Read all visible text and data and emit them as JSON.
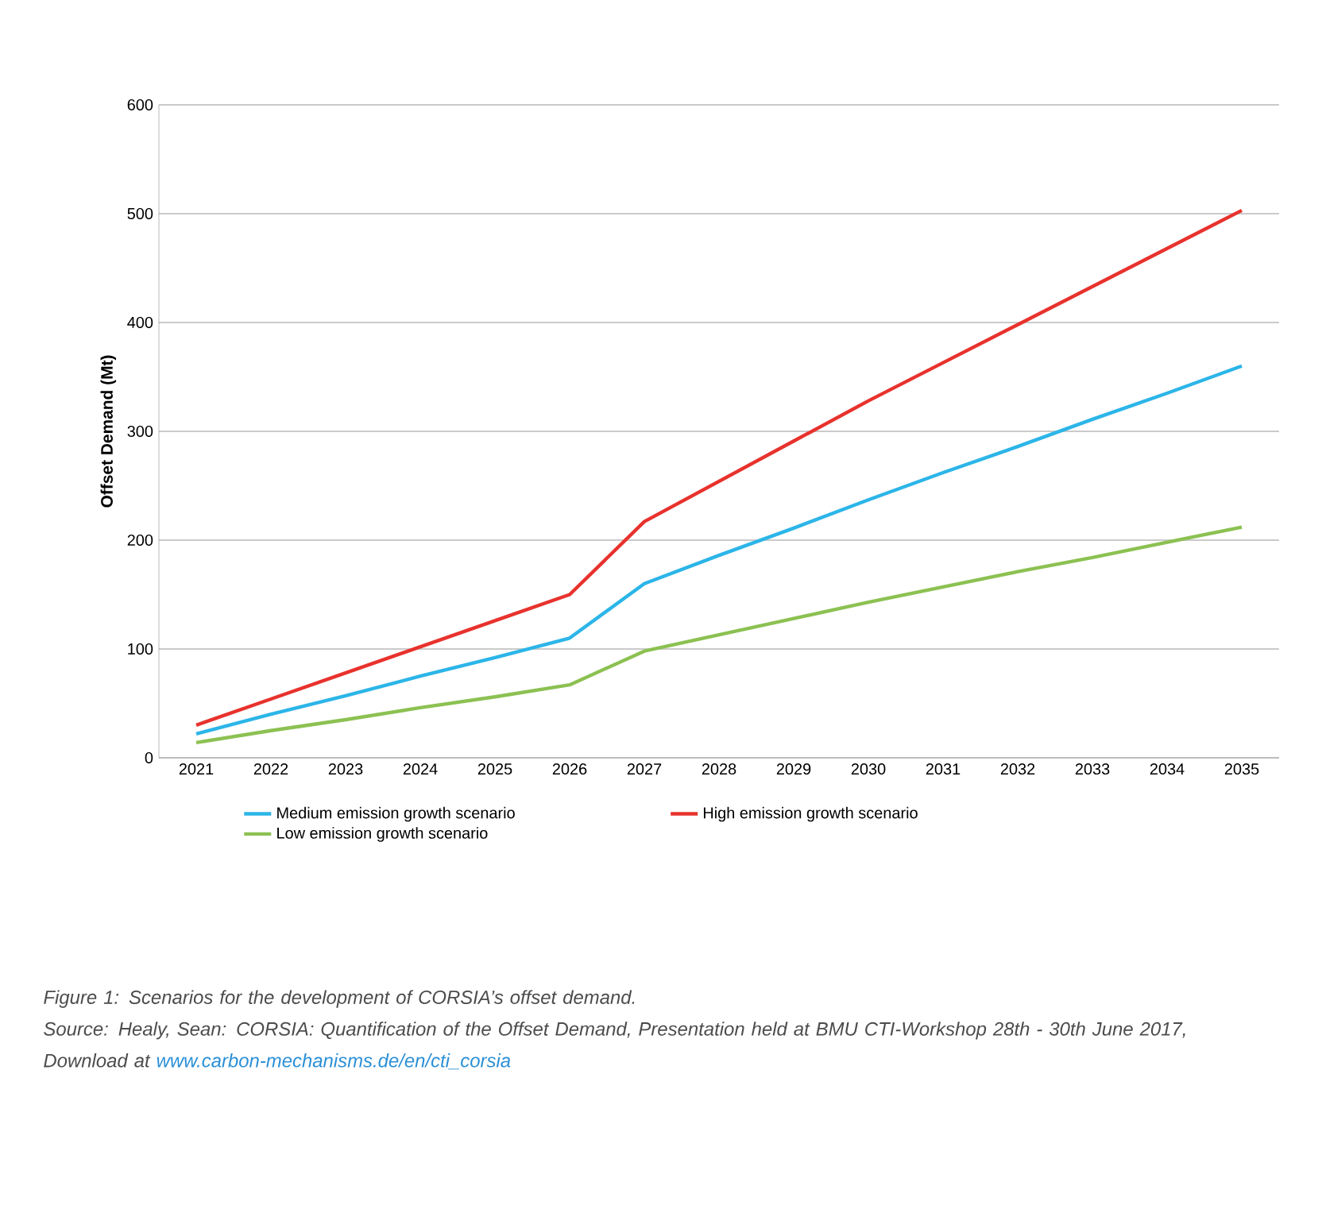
{
  "chart_data": {
    "type": "line",
    "ylabel": "Offset Demand (Mt)",
    "categories": [
      "2021",
      "2022",
      "2023",
      "2024",
      "2025",
      "2026",
      "2027",
      "2028",
      "2029",
      "2030",
      "2031",
      "2032",
      "2033",
      "2034",
      "2035"
    ],
    "series": [
      {
        "name": "Medium emission growth scenario",
        "color": "#2cb5e8",
        "values": [
          22,
          40,
          57,
          75,
          92,
          110,
          160,
          186,
          211,
          237,
          262,
          286,
          311,
          335,
          360
        ]
      },
      {
        "name": "High emission growth scenario",
        "color": "#e8322d",
        "values": [
          30,
          54,
          78,
          102,
          126,
          150,
          217,
          254,
          291,
          328,
          363,
          398,
          433,
          468,
          503
        ]
      },
      {
        "name": "Low emission growth scenario",
        "color": "#8cc152",
        "values": [
          14,
          25,
          35,
          46,
          56,
          67,
          98,
          113,
          128,
          143,
          157,
          171,
          184,
          198,
          212
        ]
      }
    ],
    "ylim": [
      0,
      600
    ],
    "yticks": [
      0,
      100,
      200,
      300,
      400,
      500,
      600
    ],
    "grid": "y",
    "legend": "bottom",
    "marker": "none",
    "annotations": [
      "Figure 1: Scenarios for the development of CORSIA’s offset demand.",
      "Source: Healy, Sean: CORSIA: Quantification of the Offset Demand, Presentation held at BMU CTI-Workshop 28th - 30th June 2017, Download at",
      "www.carbon-mechanisms.de/en/cti_corsia"
    ]
  }
}
